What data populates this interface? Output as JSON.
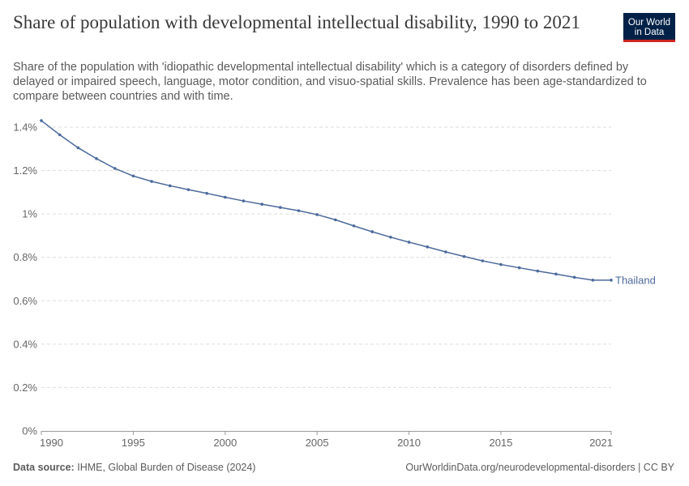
{
  "header": {
    "title": "Share of population with developmental intellectual disability, 1990 to 2021",
    "subtitle": "Share of the population with 'idiopathic developmental intellectual disability' which is a category of disorders defined by delayed or impaired speech, language, motor condition, and visuo-spatial skills. Prevalence has been age-standardized to compare between countries and with time."
  },
  "logo": {
    "line1": "Our World",
    "line2": "in Data"
  },
  "footer": {
    "source_label": "Data source:",
    "source_text": "IHME, Global Burden of Disease (2024)",
    "url_text": "OurWorldinData.org/neurodevelopmental-disorders | CC BY"
  },
  "colors": {
    "series": "#4c6a9c",
    "grid": "#dddddd",
    "axis": "#999999"
  },
  "chart_data": {
    "type": "line",
    "x": [
      1990,
      1991,
      1992,
      1993,
      1994,
      1995,
      1996,
      1997,
      1998,
      1999,
      2000,
      2001,
      2002,
      2003,
      2004,
      2005,
      2006,
      2007,
      2008,
      2009,
      2010,
      2011,
      2012,
      2013,
      2014,
      2015,
      2016,
      2017,
      2018,
      2019,
      2020,
      2021
    ],
    "series": [
      {
        "name": "Thailand",
        "values": [
          1.43,
          1.365,
          1.305,
          1.255,
          1.21,
          1.175,
          1.15,
          1.13,
          1.112,
          1.095,
          1.077,
          1.06,
          1.045,
          1.03,
          1.015,
          0.997,
          0.973,
          0.945,
          0.918,
          0.893,
          0.87,
          0.848,
          0.825,
          0.804,
          0.784,
          0.767,
          0.752,
          0.737,
          0.723,
          0.708,
          0.695,
          0.695
        ]
      }
    ],
    "ylim": [
      0,
      1.4
    ],
    "yticks": [
      0,
      0.2,
      0.4,
      0.6,
      0.8,
      1.0,
      1.2,
      1.4
    ],
    "ytick_labels": [
      "0%",
      "0.2%",
      "0.4%",
      "0.6%",
      "0.8%",
      "1%",
      "1.2%",
      "1.4%"
    ],
    "xticks": [
      1990,
      1995,
      2000,
      2005,
      2010,
      2015,
      2021
    ],
    "xtick_labels": [
      "1990",
      "1995",
      "2000",
      "2005",
      "2010",
      "2015",
      "2021"
    ],
    "xlim": [
      1990,
      2021
    ],
    "grid": "horizontal dashed",
    "legend": "inline label at line end"
  }
}
